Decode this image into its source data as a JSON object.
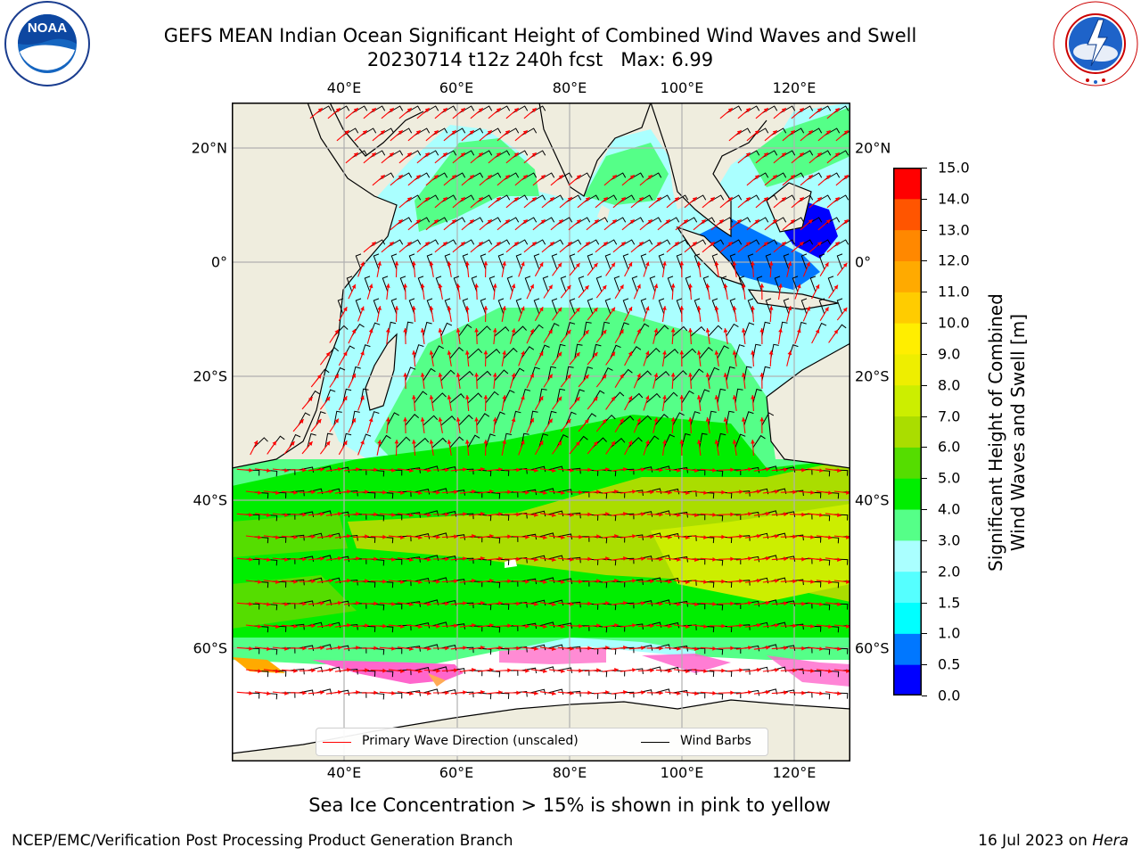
{
  "title": {
    "line1": "GEFS MEAN Indian Ocean Significant Height of Combined Wind Waves and Swell",
    "line2": "20230714 t12z 240h fcst   Max: 6.99"
  },
  "logos": {
    "left": {
      "text": "NOAA",
      "ring_text": "NATIONAL OCEANIC AND ATMOSPHERIC ADMINISTRATION · U.S. DEPARTMENT OF COMMERCE"
    },
    "right": {
      "ring_text": "NATIONAL WEATHER SERVICE"
    }
  },
  "map": {
    "lon_ticks": [
      "40°E",
      "60°E",
      "80°E",
      "100°E",
      "120°E"
    ],
    "lat_ticks": [
      "20°N",
      "0°",
      "20°S",
      "40°S",
      "60°S"
    ],
    "land_color": "#efedde",
    "grid_color": "#b0b0b0",
    "wave_arrow_color": "#ff0000",
    "barb_color": "#000000"
  },
  "legend": {
    "wave_direction": "Primary Wave Direction (unscaled)",
    "wind_barbs": "Wind Barbs"
  },
  "colorbar": {
    "label": "Significant Height of Combined Wind Waves and Swell [m]",
    "ticks": [
      "0.0",
      "0.5",
      "1.0",
      "1.5",
      "2.0",
      "3.0",
      "4.0",
      "5.0",
      "6.0",
      "7.0",
      "8.0",
      "9.0",
      "10.0",
      "11.0",
      "12.0",
      "13.0",
      "14.0",
      "15.0"
    ],
    "colors": [
      "#0000ff",
      "#0077ff",
      "#00ffff",
      "#55ffff",
      "#aaffff",
      "#55ff88",
      "#00ee00",
      "#55dd00",
      "#aadd00",
      "#ccee00",
      "#eeee00",
      "#ffee00",
      "#ffcc00",
      "#ffaa00",
      "#ff8800",
      "#ff5500",
      "#ff0000"
    ]
  },
  "note": "Sea Ice Concentration > 15% is shown in pink to yellow",
  "footer": {
    "left": "NCEP/EMC/Verification Post Processing Product Generation Branch",
    "right_date": "16 Jul 2023 on ",
    "right_host": "Hera"
  }
}
